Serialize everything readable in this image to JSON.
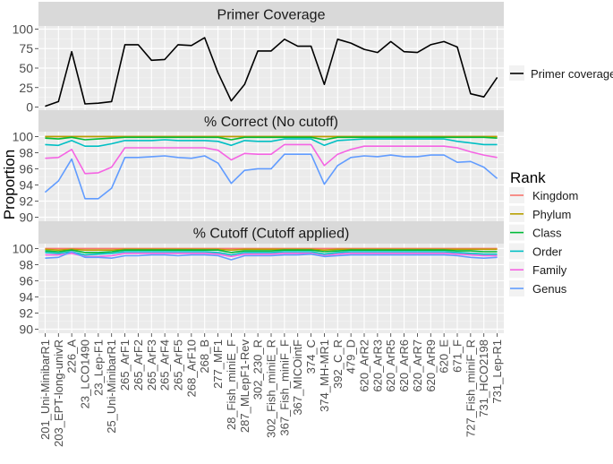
{
  "chart_data": {
    "type": "line",
    "ylabel": "Proportion",
    "categories": [
      "201_Uni-MinibarR1",
      "203_EPT-long-univR",
      "226_A",
      "23_LCO1490",
      "23_Lep-F1",
      "25_Uni-MinibarR1",
      "265_ArF1",
      "265_ArF2",
      "265_ArF3",
      "265_ArF4",
      "265_ArF5",
      "268_ArF10",
      "268_B",
      "277_MF1",
      "28_Fish_miniE_F",
      "287_MLepF1-Rev",
      "302_230_R",
      "302_Fish_miniE_R",
      "367_Fish_miniF_F",
      "367_MICOintF",
      "374_C",
      "374_MH-MR1",
      "392_C_R",
      "479_D",
      "620_ArR2",
      "620_ArR3",
      "620_ArR5",
      "620_ArR6",
      "620_ArR7",
      "620_ArR9",
      "620_E",
      "671_F",
      "727_Fish_miniF_R",
      "731_HCO2198",
      "731_Lep-R1"
    ],
    "panels": [
      {
        "title": "Primer Coverage",
        "yticks": [
          0,
          25,
          50,
          75,
          100
        ],
        "ylim": [
          -4,
          104
        ],
        "series": [
          {
            "name": "Primer coverage",
            "color": "#000000",
            "values": [
              1,
              7,
              71,
              4,
              5,
              7,
              80,
              80,
              60,
              61,
              80,
              79,
              89,
              44,
              8,
              29,
              72,
              72,
              87,
              78,
              78,
              29,
              87,
              82,
              74,
              70,
              84,
              71,
              70,
              80,
              84,
              77,
              17,
              13,
              38
            ]
          }
        ]
      },
      {
        "title": "% Correct (No cutoff)",
        "yticks": [
          90,
          92,
          94,
          96,
          98,
          100
        ],
        "ylim": [
          89.5,
          100.6
        ],
        "series": [
          {
            "name": "Kingdom",
            "color": "#F8766D",
            "values": [
              100,
              100,
              100,
              100,
              100,
              100,
              100,
              100,
              100,
              100,
              100,
              100,
              100,
              100,
              100,
              100,
              100,
              100,
              100,
              100,
              100,
              100,
              100,
              100,
              100,
              100,
              100,
              100,
              100,
              100,
              100,
              100,
              100,
              100,
              100
            ]
          },
          {
            "name": "Phylum",
            "color": "#B79F00",
            "values": [
              100,
              100,
              100,
              100,
              100,
              100,
              100,
              100,
              100,
              100,
              100,
              100,
              100,
              100,
              100,
              100,
              100,
              100,
              100,
              100,
              100,
              100,
              100,
              100,
              100,
              100,
              100,
              100,
              100,
              100,
              100,
              100,
              100,
              100,
              100
            ]
          },
          {
            "name": "Class",
            "color": "#00BA38",
            "values": [
              99.8,
              99.7,
              99.9,
              99.6,
              99.7,
              99.8,
              99.9,
              99.9,
              99.9,
              99.9,
              99.9,
              99.9,
              99.9,
              99.9,
              99.6,
              99.9,
              99.9,
              99.9,
              99.9,
              99.9,
              99.9,
              99.6,
              99.9,
              99.9,
              99.9,
              99.9,
              99.9,
              99.9,
              99.9,
              99.9,
              99.9,
              99.9,
              99.9,
              99.9,
              99.8
            ]
          },
          {
            "name": "Order",
            "color": "#00BFC4",
            "values": [
              99,
              98.9,
              99.5,
              98.8,
              98.8,
              99.1,
              99.5,
              99.5,
              99.5,
              99.6,
              99.5,
              99.5,
              99.5,
              99.4,
              98.9,
              99.5,
              99.4,
              99.4,
              99.7,
              99.7,
              99.7,
              98.9,
              99.5,
              99.6,
              99.7,
              99.7,
              99.7,
              99.7,
              99.7,
              99.7,
              99.7,
              99.4,
              99.2,
              99,
              99
            ]
          },
          {
            "name": "Family",
            "color": "#F564E3",
            "values": [
              97.3,
              97.4,
              98.4,
              95.4,
              95.5,
              96.2,
              98.6,
              98.6,
              98.6,
              98.6,
              98.6,
              98.6,
              98.6,
              98.3,
              97.1,
              97.9,
              97.8,
              97.8,
              99,
              99,
              99,
              96.4,
              97.8,
              98.4,
              98.8,
              98.8,
              98.8,
              98.8,
              98.8,
              98.8,
              98.8,
              98.6,
              98.1,
              97.7,
              97.4
            ]
          },
          {
            "name": "Genus",
            "color": "#619CFF",
            "values": [
              93.1,
              94.5,
              97.2,
              92.3,
              92.3,
              93.6,
              97.4,
              97.4,
              97.5,
              97.6,
              97.4,
              97.3,
              97.6,
              96.7,
              94.2,
              95.8,
              96,
              96,
              97.8,
              97.8,
              97.8,
              94.1,
              96.4,
              97.4,
              97.6,
              97.5,
              97.7,
              97.5,
              97.5,
              97.7,
              97.7,
              96.8,
              96.9,
              96.2,
              94.8
            ]
          }
        ]
      },
      {
        "title": "% Cutoff (Cutoff applied)",
        "yticks": [
          90,
          92,
          94,
          96,
          98,
          100
        ],
        "ylim": [
          89.5,
          100.6
        ],
        "series": [
          {
            "name": "Kingdom",
            "color": "#F8766D",
            "values": [
              100,
              100,
              100,
              100,
              100,
              100,
              100,
              100,
              100,
              100,
              100,
              100,
              100,
              100,
              100,
              100,
              100,
              100,
              100,
              100,
              100,
              100,
              100,
              100,
              100,
              100,
              100,
              100,
              100,
              100,
              100,
              100,
              100,
              100,
              100
            ]
          },
          {
            "name": "Phylum",
            "color": "#B79F00",
            "values": [
              99.9,
              99.8,
              99.9,
              99.8,
              99.8,
              99.8,
              99.9,
              99.9,
              99.9,
              99.9,
              99.9,
              99.9,
              99.9,
              99.9,
              99.8,
              99.9,
              99.9,
              99.9,
              99.9,
              99.9,
              99.9,
              99.8,
              99.9,
              99.9,
              99.9,
              99.9,
              99.9,
              99.9,
              99.9,
              99.9,
              99.9,
              99.9,
              99.9,
              99.9,
              99.9
            ]
          },
          {
            "name": "Class",
            "color": "#00BA38",
            "values": [
              99.7,
              99.6,
              99.8,
              99.5,
              99.5,
              99.6,
              99.8,
              99.8,
              99.8,
              99.8,
              99.8,
              99.8,
              99.8,
              99.8,
              99.5,
              99.7,
              99.7,
              99.7,
              99.8,
              99.8,
              99.8,
              99.6,
              99.7,
              99.8,
              99.8,
              99.8,
              99.8,
              99.8,
              99.8,
              99.8,
              99.8,
              99.7,
              99.7,
              99.6,
              99.6
            ]
          },
          {
            "name": "Order",
            "color": "#00BFC4",
            "values": [
              99.5,
              99.4,
              99.6,
              99.2,
              99.3,
              99.4,
              99.6,
              99.6,
              99.6,
              99.6,
              99.6,
              99.6,
              99.6,
              99.5,
              99.2,
              99.5,
              99.5,
              99.5,
              99.6,
              99.6,
              99.6,
              99.3,
              99.5,
              99.6,
              99.6,
              99.6,
              99.6,
              99.6,
              99.6,
              99.6,
              99.6,
              99.5,
              99.4,
              99.3,
              99.3
            ]
          },
          {
            "name": "Family",
            "color": "#F564E3",
            "values": [
              99.2,
              99.2,
              99.4,
              99,
              99,
              99.1,
              99.4,
              99.4,
              99.4,
              99.4,
              99.4,
              99.4,
              99.4,
              99.3,
              99,
              99.3,
              99.3,
              99.3,
              99.4,
              99.4,
              99.4,
              99.1,
              99.3,
              99.4,
              99.4,
              99.4,
              99.4,
              99.4,
              99.4,
              99.4,
              99.4,
              99.3,
              99.2,
              99.1,
              99.1
            ]
          },
          {
            "name": "Genus",
            "color": "#619CFF",
            "values": [
              98.8,
              98.9,
              99.6,
              98.9,
              98.9,
              98.8,
              99.1,
              99.1,
              99.2,
              99.2,
              99.1,
              99.2,
              99.2,
              99.1,
              98.6,
              99.1,
              99.1,
              99.1,
              99.2,
              99.2,
              99.3,
              99,
              99.1,
              99.2,
              99.2,
              99.2,
              99.2,
              99.2,
              99.2,
              99.2,
              99.2,
              99.1,
              98.9,
              98.8,
              98.9
            ]
          }
        ]
      }
    ],
    "legends": [
      {
        "title": "",
        "entries": [
          "Primer coverage"
        ],
        "colors": [
          "#000000"
        ],
        "placement": "right"
      },
      {
        "title": "Rank",
        "entries": [
          "Kingdom",
          "Phylum",
          "Class",
          "Order",
          "Family",
          "Genus"
        ],
        "colors": [
          "#F8766D",
          "#B79F00",
          "#00BA38",
          "#00BFC4",
          "#F564E3",
          "#619CFF"
        ],
        "placement": "right"
      }
    ],
    "grid": true
  }
}
